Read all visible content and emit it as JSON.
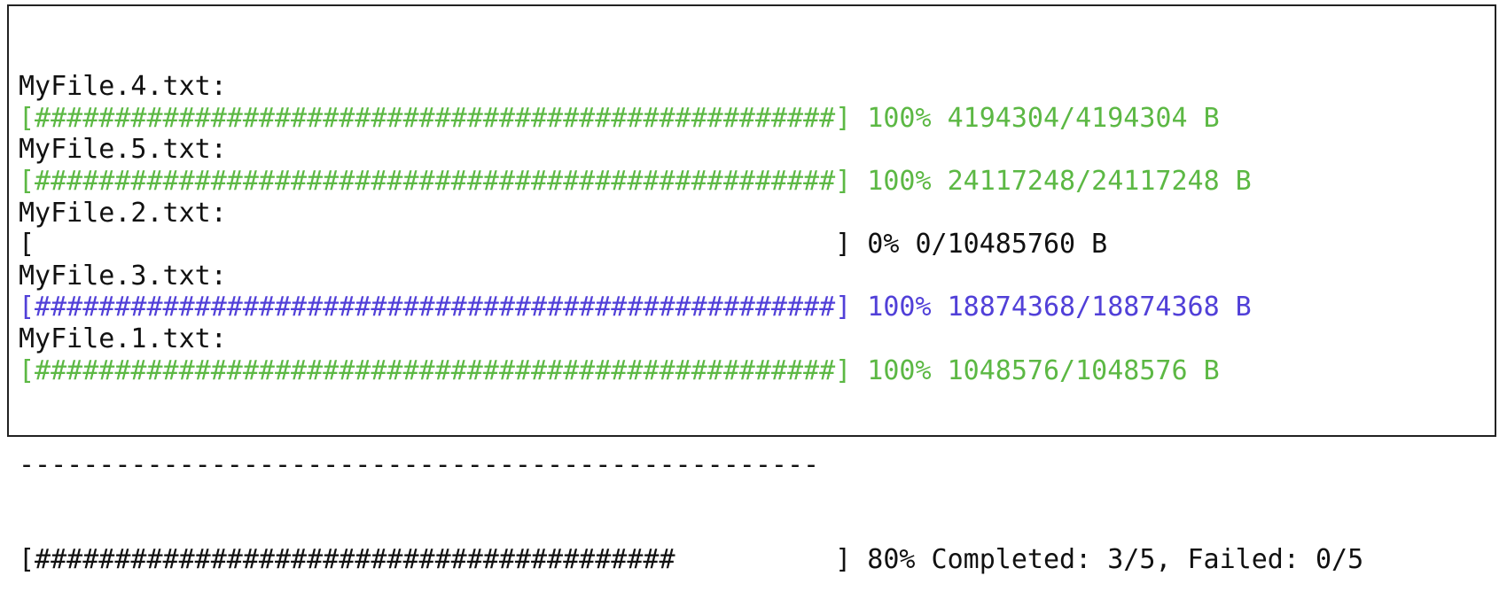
{
  "colors": {
    "text": "#111111",
    "green": "#5cb844",
    "blue": "#5140d8"
  },
  "bar_width_chars": 50,
  "files": [
    {
      "name": "MyFile.4.txt:",
      "percent": 100,
      "percent_label": "100%",
      "size_label": "4194304/4194304 B",
      "color": "#5cb844"
    },
    {
      "name": "MyFile.5.txt:",
      "percent": 100,
      "percent_label": "100%",
      "size_label": "24117248/24117248 B",
      "color": "#5cb844"
    },
    {
      "name": "MyFile.2.txt:",
      "percent": 0,
      "percent_label": "0%",
      "size_label": "0/10485760 B",
      "color": "#111111"
    },
    {
      "name": "MyFile.3.txt:",
      "percent": 100,
      "percent_label": "100%",
      "size_label": "18874368/18874368 B",
      "color": "#5140d8"
    },
    {
      "name": "MyFile.1.txt:",
      "percent": 100,
      "percent_label": "100%",
      "size_label": "1048576/1048576 B",
      "color": "#5cb844"
    }
  ],
  "separator": "--------------------------------------------------",
  "summary": {
    "percent": 80,
    "percent_label": "80%",
    "status": "Completed: 3/5, Failed: 0/5"
  }
}
